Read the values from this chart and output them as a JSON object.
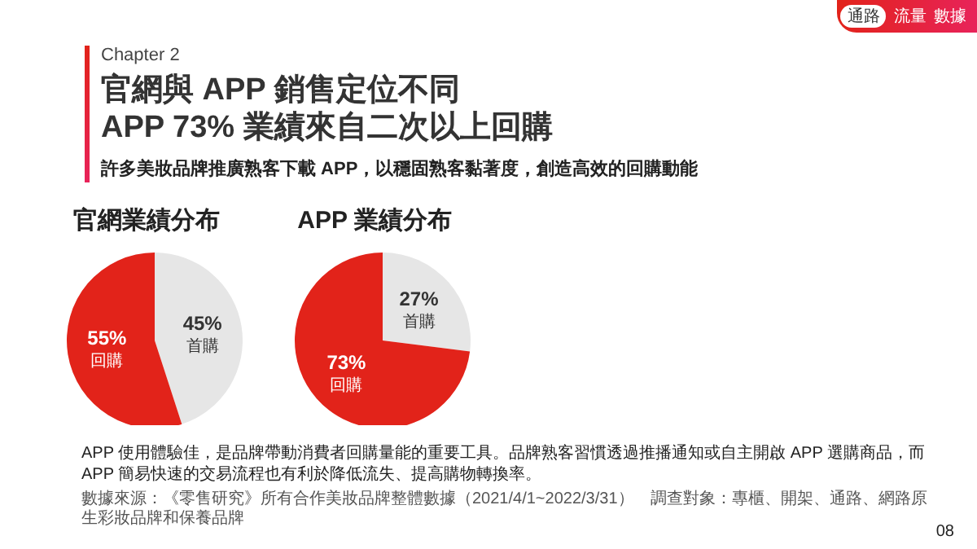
{
  "chart_data": [
    {
      "type": "pie",
      "title": "官網業績分布",
      "categories": [
        "首購",
        "回購"
      ],
      "values": [
        45,
        55
      ],
      "value_labels": [
        "45%",
        "55%"
      ],
      "colors": [
        "#e6e6e6",
        "#e2231a"
      ],
      "annotations": [
        "通路",
        "流量",
        "數據",
        "Chapter 2",
        "官網與 APP 銷售定位不同",
        "APP 73% 業績來自二次以上回購",
        "許多美妝品牌推廣熟客下載 APP，以穩固熟客黏著度，創造高效的回購動能",
        "APP 使用體驗佳，是品牌帶動消費者回購量能的重要工具。品牌熟客習慣透過推播通知或自主開啟 APP 選購商品，而 APP 簡易快速的交易流程也有利於降低流失、提高購物轉換率。",
        "數據來源：《零售研究》所有合作美妝品牌整體數據（2021/4/1~2022/3/31）",
        "調查對象：專櫃、開架、通路、網路原生彩妝品牌和保養品牌",
        "08"
      ]
    },
    {
      "type": "pie",
      "title": "APP 業績分布",
      "categories": [
        "首購",
        "回購"
      ],
      "values": [
        27,
        73
      ],
      "value_labels": [
        "27%",
        "73%"
      ],
      "colors": [
        "#e6e6e6",
        "#e2231a"
      ]
    }
  ]
}
